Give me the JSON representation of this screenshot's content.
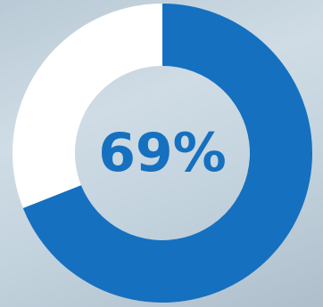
{
  "chart_data": {
    "type": "donut",
    "values": [
      69,
      31
    ],
    "value_labels": [
      "69%",
      null
    ],
    "colors": [
      "#1570bf",
      "#ffffff"
    ]
  }
}
